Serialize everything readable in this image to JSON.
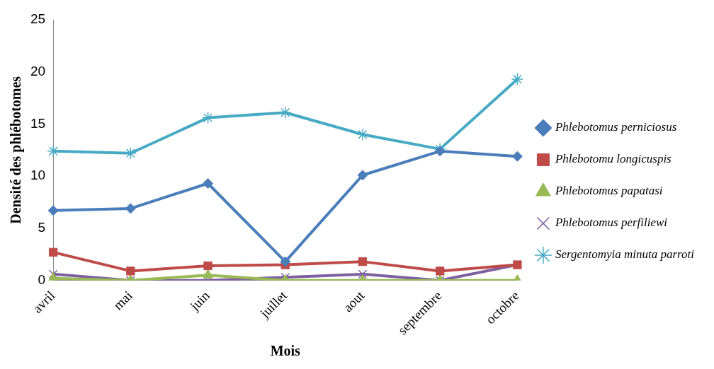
{
  "chart_data": {
    "type": "line",
    "xlabel": "Mois",
    "ylabel": "Densité des phlébotomes",
    "categories": [
      "avril",
      "mai",
      "juin",
      "juillet",
      "aout",
      "septembre",
      "octobre"
    ],
    "ylim": [
      0,
      25
    ],
    "yticks": [
      0,
      5,
      10,
      15,
      20,
      25
    ],
    "grid": false,
    "legend": "right",
    "series": [
      {
        "name": "Phlebotomus perniciosus",
        "color": "#4a7ebb",
        "marker": "diamond",
        "values": [
          6.7,
          6.9,
          9.3,
          1.8,
          10.1,
          12.4,
          11.9
        ]
      },
      {
        "name": "Phlebotomu longicuspis",
        "color": "#be4b48",
        "marker": "square",
        "values": [
          2.7,
          0.9,
          1.4,
          1.5,
          1.8,
          0.9,
          1.5
        ]
      },
      {
        "name": "Phlebotomus papatasi",
        "color": "#98b954",
        "marker": "triangle",
        "values": [
          0.2,
          0,
          0.5,
          0,
          0,
          0,
          0
        ]
      },
      {
        "name": "Phlebotomus perfiliewi",
        "color": "#7d60a0",
        "marker": "cross",
        "values": [
          0.6,
          0,
          0,
          0.3,
          0.6,
          0,
          1.5
        ]
      },
      {
        "name": "Sergentomyia minuta parroti",
        "color": "#46aac5",
        "marker": "cross",
        "values": [
          12.4,
          12.2,
          15.6,
          16.1,
          14.0,
          12.6,
          19.3
        ]
      }
    ]
  }
}
